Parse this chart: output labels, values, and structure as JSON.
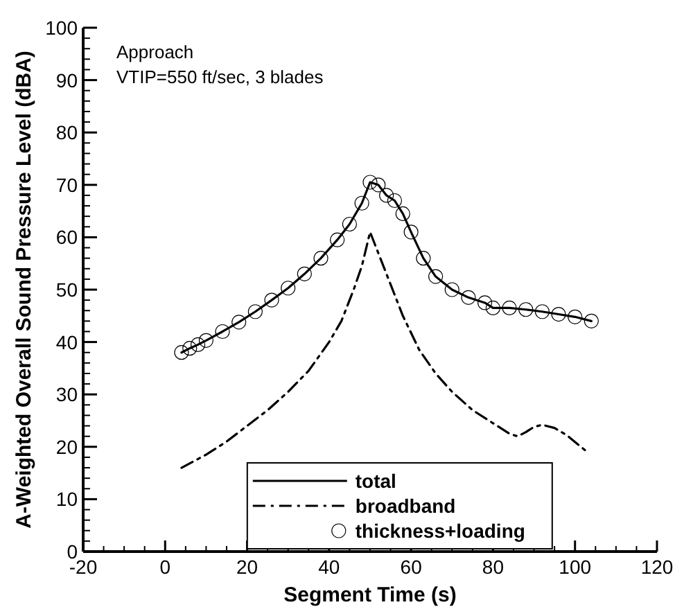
{
  "chart_data": {
    "type": "line",
    "xlabel": "Segment Time (s)",
    "ylabel": "A-Weighted Overall Sound Pressure Level (dBA)",
    "annotations": [
      "Approach",
      "VTIP=550 ft/sec, 3 blades"
    ],
    "xlim": [
      -20,
      120
    ],
    "ylim": [
      0,
      100
    ],
    "xticks": [
      -20,
      {
        "value": -15,
        "label": null
      },
      {
        "value": -10,
        "label": null
      },
      {
        "value": -5,
        "label": null
      },
      0,
      {
        "value": 5,
        "label": null
      },
      {
        "value": 10,
        "label": null
      },
      {
        "value": 15,
        "label": null
      },
      20,
      {
        "value": 25,
        "label": null
      },
      {
        "value": 30,
        "label": null
      },
      {
        "value": 35,
        "label": null
      },
      40,
      {
        "value": 45,
        "label": null
      },
      {
        "value": 50,
        "label": null
      },
      {
        "value": 55,
        "label": null
      },
      60,
      {
        "value": 65,
        "label": null
      },
      {
        "value": 70,
        "label": null
      },
      {
        "value": 75,
        "label": null
      },
      80,
      {
        "value": 85,
        "label": null
      },
      {
        "value": 90,
        "label": null
      },
      {
        "value": 95,
        "label": null
      },
      100,
      {
        "value": 105,
        "label": null
      },
      {
        "value": 110,
        "label": null
      },
      {
        "value": 115,
        "label": null
      },
      120
    ],
    "yticks": [
      0,
      {
        "value": 2,
        "label": null
      },
      {
        "value": 4,
        "label": null
      },
      {
        "value": 6,
        "label": null
      },
      {
        "value": 8,
        "label": null
      },
      10,
      {
        "value": 12,
        "label": null
      },
      {
        "value": 14,
        "label": null
      },
      {
        "value": 16,
        "label": null
      },
      {
        "value": 18,
        "label": null
      },
      20,
      {
        "value": 22,
        "label": null
      },
      {
        "value": 24,
        "label": null
      },
      {
        "value": 26,
        "label": null
      },
      {
        "value": 28,
        "label": null
      },
      30,
      {
        "value": 32,
        "label": null
      },
      {
        "value": 34,
        "label": null
      },
      {
        "value": 36,
        "label": null
      },
      {
        "value": 38,
        "label": null
      },
      40,
      {
        "value": 42,
        "label": null
      },
      {
        "value": 44,
        "label": null
      },
      {
        "value": 46,
        "label": null
      },
      {
        "value": 48,
        "label": null
      },
      50,
      {
        "value": 52,
        "label": null
      },
      {
        "value": 54,
        "label": null
      },
      {
        "value": 56,
        "label": null
      },
      {
        "value": 58,
        "label": null
      },
      60,
      {
        "value": 62,
        "label": null
      },
      {
        "value": 64,
        "label": null
      },
      {
        "value": 66,
        "label": null
      },
      {
        "value": 68,
        "label": null
      },
      70,
      {
        "value": 72,
        "label": null
      },
      {
        "value": 74,
        "label": null
      },
      {
        "value": 76,
        "label": null
      },
      {
        "value": 78,
        "label": null
      },
      80,
      {
        "value": 82,
        "label": null
      },
      {
        "value": 84,
        "label": null
      },
      {
        "value": 86,
        "label": null
      },
      {
        "value": 88,
        "label": null
      },
      90,
      {
        "value": 92,
        "label": null
      },
      {
        "value": 94,
        "label": null
      },
      {
        "value": 96,
        "label": null
      },
      {
        "value": 98,
        "label": null
      },
      100
    ],
    "grid": false,
    "legend": "bottom",
    "series": [
      {
        "name": "total",
        "color": "#000000",
        "line_style": "solid",
        "x": [
          4,
          6,
          8,
          10,
          14,
          18,
          22,
          26,
          30,
          34,
          38,
          42,
          45,
          48,
          50,
          52,
          54,
          56,
          58,
          60,
          63,
          66,
          70,
          74,
          78,
          80,
          84,
          88,
          92,
          96,
          100,
          104
        ],
        "values": [
          38,
          38.8,
          39.5,
          40.3,
          42,
          43.8,
          45.8,
          48,
          50.3,
          53,
          56,
          59.5,
          62.5,
          66.5,
          70.5,
          70,
          68,
          67,
          64.5,
          61,
          56,
          52.5,
          50,
          48.5,
          47.5,
          46.5,
          46.5,
          46.2,
          45.8,
          45.3,
          44.8,
          44
        ]
      },
      {
        "name": "broadband",
        "color": "#000000",
        "line_style": "dashdot",
        "x": [
          4,
          10,
          15,
          20,
          25,
          30,
          35,
          40,
          43,
          46,
          48,
          50,
          52,
          55,
          58,
          62,
          66,
          70,
          75,
          80,
          84,
          86,
          88,
          90,
          92,
          95,
          98,
          103
        ],
        "values": [
          16,
          18.5,
          21,
          24,
          27,
          30.5,
          34.5,
          40,
          44,
          50,
          54.5,
          61,
          57,
          51,
          45,
          38.5,
          34,
          30.5,
          27,
          24.5,
          22.5,
          22,
          22.8,
          23.8,
          24.2,
          23.6,
          22.2,
          19
        ]
      },
      {
        "name": "thickness+loading",
        "type": "scatter",
        "color": "#000000",
        "marker": "circle",
        "x": [
          4,
          6,
          8,
          10,
          14,
          18,
          22,
          26,
          30,
          34,
          38,
          42,
          45,
          48,
          50,
          52,
          54,
          56,
          58,
          60,
          63,
          66,
          70,
          74,
          78,
          80,
          84,
          88,
          92,
          96,
          100,
          104
        ],
        "values": [
          38,
          38.8,
          39.5,
          40.3,
          42,
          43.8,
          45.8,
          48,
          50.3,
          53,
          56,
          59.5,
          62.5,
          66.5,
          70.5,
          70,
          68,
          67,
          64.5,
          61,
          56,
          52.5,
          50,
          48.5,
          47.5,
          46.5,
          46.5,
          46.2,
          45.8,
          45.3,
          44.8,
          44
        ]
      }
    ]
  }
}
